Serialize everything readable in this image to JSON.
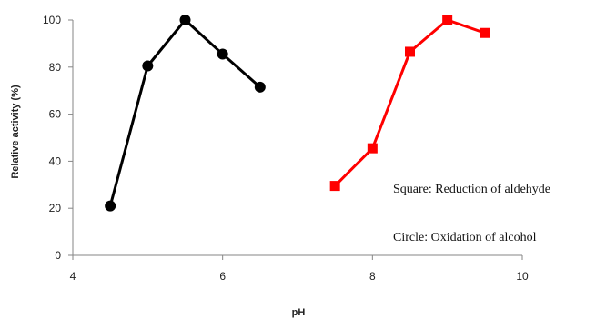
{
  "chart_data": {
    "type": "scatter",
    "xlabel": "pH",
    "ylabel": "Relative activity (%)",
    "xlim": [
      4,
      10
    ],
    "ylim": [
      0,
      100
    ],
    "x_ticks": [
      4,
      6,
      8,
      10
    ],
    "y_ticks": [
      0,
      20,
      40,
      60,
      80,
      100
    ],
    "grid": false,
    "series": [
      {
        "marker": "circle",
        "color": "#000000",
        "x": [
          4.5,
          5.0,
          5.5,
          6.0,
          6.5
        ],
        "y": [
          21,
          80.5,
          100,
          85.5,
          71.5
        ]
      },
      {
        "marker": "square",
        "color": "#ff0000",
        "x": [
          7.5,
          8.0,
          8.5,
          9.0,
          9.5
        ],
        "y": [
          29.5,
          45.5,
          86.5,
          100,
          94.5
        ]
      }
    ],
    "annotations": [
      "Square: Reduction of aldehyde",
      "Circle: Oxidation of alcohol"
    ]
  }
}
